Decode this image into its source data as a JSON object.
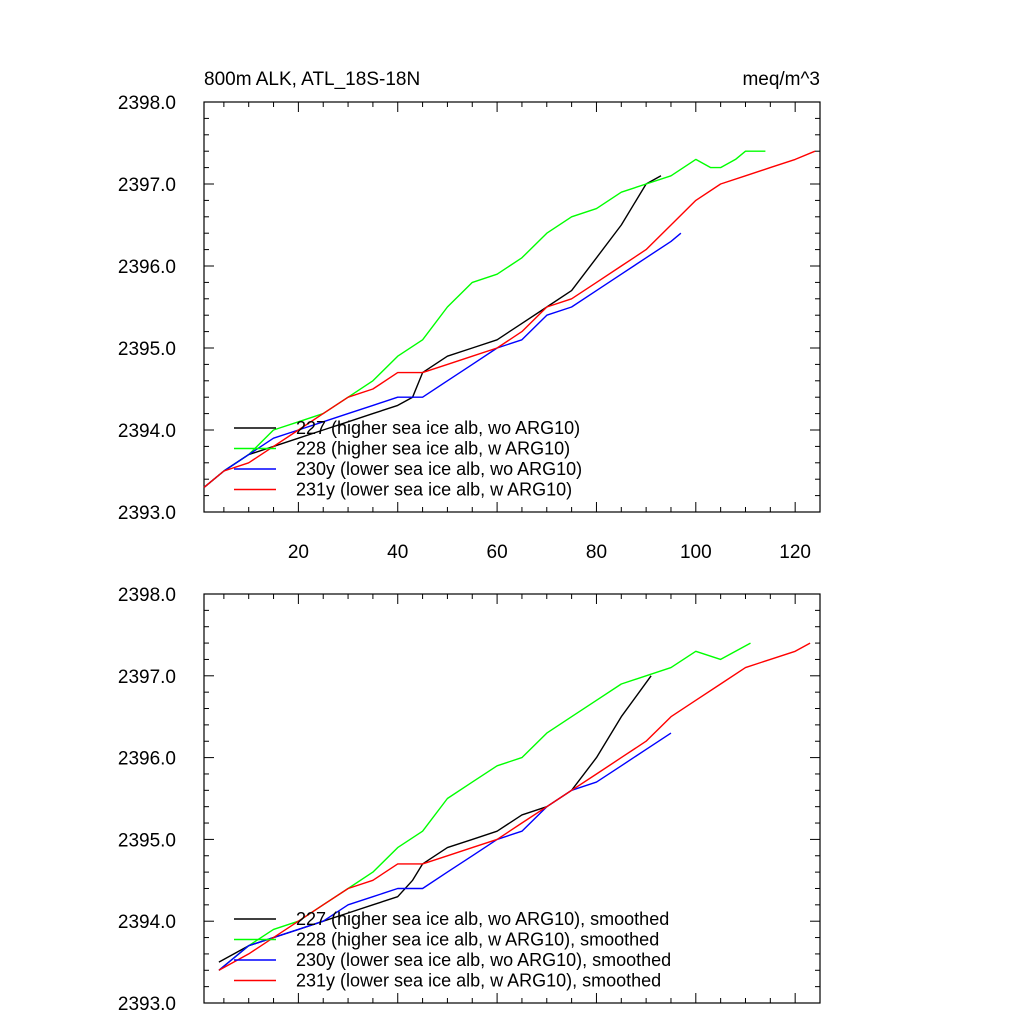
{
  "chart_data": [
    {
      "type": "line",
      "title": "800m ALK, ATL_18S-18N",
      "units": "meq/m^3",
      "xlim": [
        1,
        125
      ],
      "ylim": [
        2393.0,
        2398.0
      ],
      "xticks": [
        20,
        40,
        60,
        80,
        100,
        120
      ],
      "yticks": [
        "2393.0",
        "2394.0",
        "2395.0",
        "2396.0",
        "2397.0",
        "2398.0"
      ],
      "grid": false,
      "legend_position": "bottom-left",
      "series": [
        {
          "name": "227 (higher sea ice alb, wo ARG10)",
          "color": "#000000",
          "x": [
            1,
            5,
            10,
            15,
            20,
            25,
            30,
            35,
            40,
            43,
            45,
            50,
            55,
            60,
            65,
            70,
            75,
            80,
            85,
            90,
            93
          ],
          "y": [
            2393.3,
            2393.5,
            2393.7,
            2393.8,
            2393.9,
            2394.0,
            2394.1,
            2394.2,
            2394.3,
            2394.4,
            2394.7,
            2394.9,
            2395.0,
            2395.1,
            2395.3,
            2395.5,
            2395.7,
            2396.1,
            2396.5,
            2397.0,
            2397.1
          ]
        },
        {
          "name": "228 (higher sea ice alb, w ARG10)",
          "color": "#00ff00",
          "x": [
            1,
            5,
            10,
            15,
            20,
            25,
            30,
            35,
            40,
            45,
            50,
            55,
            60,
            65,
            70,
            75,
            80,
            85,
            90,
            95,
            100,
            103,
            105,
            108,
            110,
            114
          ],
          "y": [
            2393.3,
            2393.5,
            2393.7,
            2394.0,
            2394.1,
            2394.2,
            2394.4,
            2394.6,
            2394.9,
            2395.1,
            2395.5,
            2395.8,
            2395.9,
            2396.1,
            2396.4,
            2396.6,
            2396.7,
            2396.9,
            2397.0,
            2397.1,
            2397.3,
            2397.2,
            2397.2,
            2397.3,
            2397.4,
            2397.4
          ]
        },
        {
          "name": "230y (lower sea ice alb, wo ARG10)",
          "color": "#0000ff",
          "x": [
            1,
            5,
            10,
            15,
            20,
            25,
            30,
            35,
            40,
            45,
            50,
            55,
            60,
            65,
            70,
            75,
            80,
            85,
            90,
            95,
            97
          ],
          "y": [
            2393.3,
            2393.5,
            2393.7,
            2393.9,
            2394.0,
            2394.1,
            2394.2,
            2394.3,
            2394.4,
            2394.4,
            2394.6,
            2394.8,
            2395.0,
            2395.1,
            2395.4,
            2395.5,
            2395.7,
            2395.9,
            2396.1,
            2396.3,
            2396.4
          ]
        },
        {
          "name": "231y (lower sea ice alb, w ARG10)",
          "color": "#ff0000",
          "x": [
            1,
            5,
            10,
            15,
            20,
            25,
            30,
            35,
            40,
            45,
            50,
            55,
            60,
            65,
            70,
            75,
            80,
            85,
            90,
            95,
            100,
            105,
            110,
            115,
            120,
            124
          ],
          "y": [
            2393.3,
            2393.5,
            2393.6,
            2393.8,
            2394.0,
            2394.2,
            2394.4,
            2394.5,
            2394.7,
            2394.7,
            2394.8,
            2394.9,
            2395.0,
            2395.2,
            2395.5,
            2395.6,
            2395.8,
            2396.0,
            2396.2,
            2396.5,
            2396.8,
            2397.0,
            2397.1,
            2397.2,
            2397.3,
            2397.4
          ]
        }
      ]
    },
    {
      "type": "line",
      "xlim": [
        1,
        125
      ],
      "ylim": [
        2393.0,
        2398.0
      ],
      "yticks": [
        "2393.0",
        "2394.0",
        "2395.0",
        "2396.0",
        "2397.0",
        "2398.0"
      ],
      "grid": false,
      "legend_position": "bottom-left",
      "series": [
        {
          "name": "227 (higher sea ice alb, wo ARG10), smoothed",
          "color": "#000000",
          "x": [
            4,
            10,
            15,
            20,
            25,
            30,
            35,
            40,
            43,
            45,
            50,
            55,
            60,
            65,
            70,
            75,
            80,
            85,
            91
          ],
          "y": [
            2393.5,
            2393.7,
            2393.8,
            2393.9,
            2394.0,
            2394.1,
            2394.2,
            2394.3,
            2394.5,
            2394.7,
            2394.9,
            2395.0,
            2395.1,
            2395.3,
            2395.4,
            2395.6,
            2396.0,
            2396.5,
            2397.0
          ]
        },
        {
          "name": "228 (higher sea ice alb, w ARG10), smoothed",
          "color": "#00ff00",
          "x": [
            4,
            10,
            15,
            20,
            25,
            30,
            35,
            40,
            45,
            50,
            55,
            60,
            65,
            70,
            75,
            80,
            85,
            90,
            95,
            100,
            105,
            111
          ],
          "y": [
            2393.4,
            2393.7,
            2393.9,
            2394.0,
            2394.2,
            2394.4,
            2394.6,
            2394.9,
            2395.1,
            2395.5,
            2395.7,
            2395.9,
            2396.0,
            2396.3,
            2396.5,
            2396.7,
            2396.9,
            2397.0,
            2397.1,
            2397.3,
            2397.2,
            2397.4
          ]
        },
        {
          "name": "230y (lower sea ice alb, wo ARG10), smoothed",
          "color": "#0000ff",
          "x": [
            4,
            10,
            15,
            20,
            25,
            30,
            35,
            40,
            45,
            50,
            55,
            60,
            65,
            70,
            75,
            80,
            85,
            90,
            95
          ],
          "y": [
            2393.4,
            2393.7,
            2393.8,
            2393.9,
            2394.0,
            2394.2,
            2394.3,
            2394.4,
            2394.4,
            2394.6,
            2394.8,
            2395.0,
            2395.1,
            2395.4,
            2395.6,
            2395.7,
            2395.9,
            2396.1,
            2396.3
          ]
        },
        {
          "name": "231y (lower sea ice alb, w ARG10), smoothed",
          "color": "#ff0000",
          "x": [
            4,
            10,
            15,
            20,
            25,
            30,
            35,
            40,
            45,
            50,
            55,
            60,
            65,
            70,
            75,
            80,
            85,
            90,
            95,
            100,
            105,
            110,
            115,
            120,
            123
          ],
          "y": [
            2393.4,
            2393.6,
            2393.8,
            2394.0,
            2394.2,
            2394.4,
            2394.5,
            2394.7,
            2394.7,
            2394.8,
            2394.9,
            2395.0,
            2395.2,
            2395.4,
            2395.6,
            2395.8,
            2396.0,
            2396.2,
            2396.5,
            2396.7,
            2396.9,
            2397.1,
            2397.2,
            2397.3,
            2397.4
          ]
        }
      ]
    }
  ]
}
